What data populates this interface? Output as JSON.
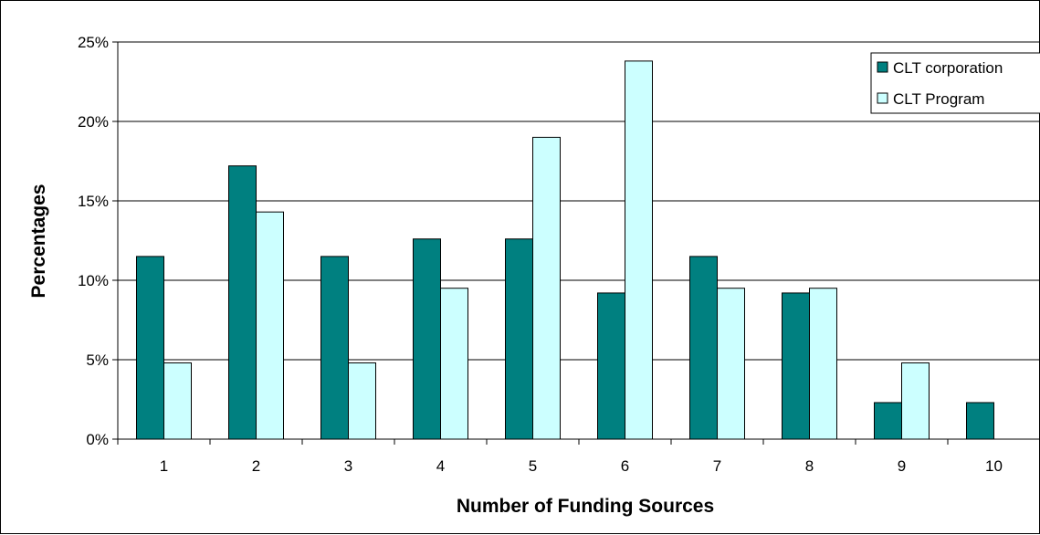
{
  "chart_data": {
    "type": "bar",
    "title": "",
    "xlabel": "Number of Funding Sources",
    "ylabel": "Percentages",
    "categories": [
      "1",
      "2",
      "3",
      "4",
      "5",
      "6",
      "7",
      "8",
      "9",
      "10"
    ],
    "series": [
      {
        "name": "CLT corporation",
        "color": "#008080",
        "values": [
          11.5,
          17.2,
          11.5,
          12.6,
          12.6,
          9.2,
          11.5,
          9.2,
          2.3,
          2.3
        ]
      },
      {
        "name": "CLT Program",
        "color": "#CCFFFF",
        "values": [
          4.8,
          14.3,
          4.8,
          9.5,
          19.0,
          23.8,
          9.5,
          9.5,
          4.8,
          null
        ]
      }
    ],
    "ylim": [
      0,
      25
    ],
    "yticks": [
      "0%",
      "5%",
      "10%",
      "15%",
      "20%",
      "25%"
    ],
    "ytick_values": [
      0,
      5,
      10,
      15,
      20,
      25
    ],
    "grid": true,
    "legend_position": "top-right"
  }
}
